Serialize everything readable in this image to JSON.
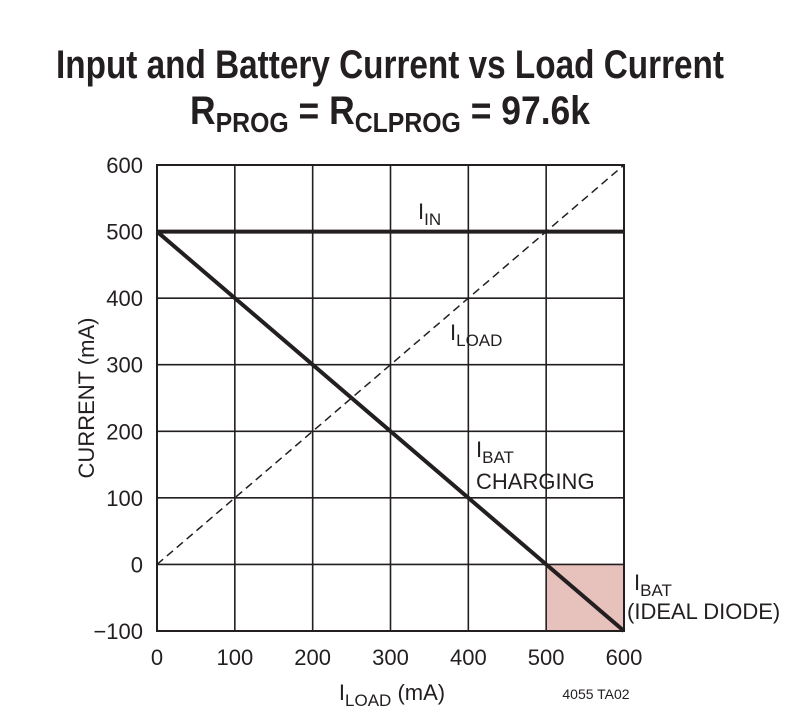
{
  "chart_data": {
    "type": "line",
    "title_line1": "Input and Battery Current vs Load Current",
    "title_line2": {
      "main_r1": "R",
      "sub1": "PROG",
      "eq": " = ",
      "main_r2": "R",
      "sub2": "CLPROG",
      "value": " = 97.6k"
    },
    "xlabel": {
      "main": "I",
      "sub": "LOAD",
      "unit": " (mA)"
    },
    "ylabel": "CURRENT (mA)",
    "xlim": [
      0,
      600
    ],
    "ylim": [
      -100,
      600
    ],
    "x_ticks": [
      "0",
      "100",
      "200",
      "300",
      "400",
      "500",
      "600"
    ],
    "y_ticks": [
      "600",
      "500",
      "400",
      "300",
      "200",
      "100",
      "0",
      "−100"
    ],
    "grid": true,
    "series": [
      {
        "name": "IIN",
        "style": "solid-thick",
        "points": [
          [
            0,
            500
          ],
          [
            600,
            500
          ]
        ]
      },
      {
        "name": "ILOAD",
        "style": "dashed",
        "points": [
          [
            0,
            0
          ],
          [
            600,
            600
          ]
        ]
      },
      {
        "name": "IBAT CHARGING",
        "style": "solid-thick",
        "points": [
          [
            0,
            500
          ],
          [
            600,
            -100
          ]
        ]
      }
    ],
    "shaded_region": {
      "x": [
        500,
        600
      ],
      "y": [
        -100,
        0
      ],
      "color": "#e7c1bc"
    },
    "annotations": {
      "iin": {
        "main": "I",
        "sub": "IN"
      },
      "iload": {
        "main": "I",
        "sub": "LOAD"
      },
      "ibat_charging": {
        "main": "I",
        "sub": "BAT",
        "line2": "CHARGING"
      },
      "ibat_diode": {
        "main": "I",
        "sub": "BAT",
        "line2": "(IDEAL DIODE)"
      }
    },
    "figure_code": "4055 TA02"
  },
  "colors": {
    "line": "#231f20",
    "grid": "#231f20",
    "shade": "#e7c1bc"
  }
}
